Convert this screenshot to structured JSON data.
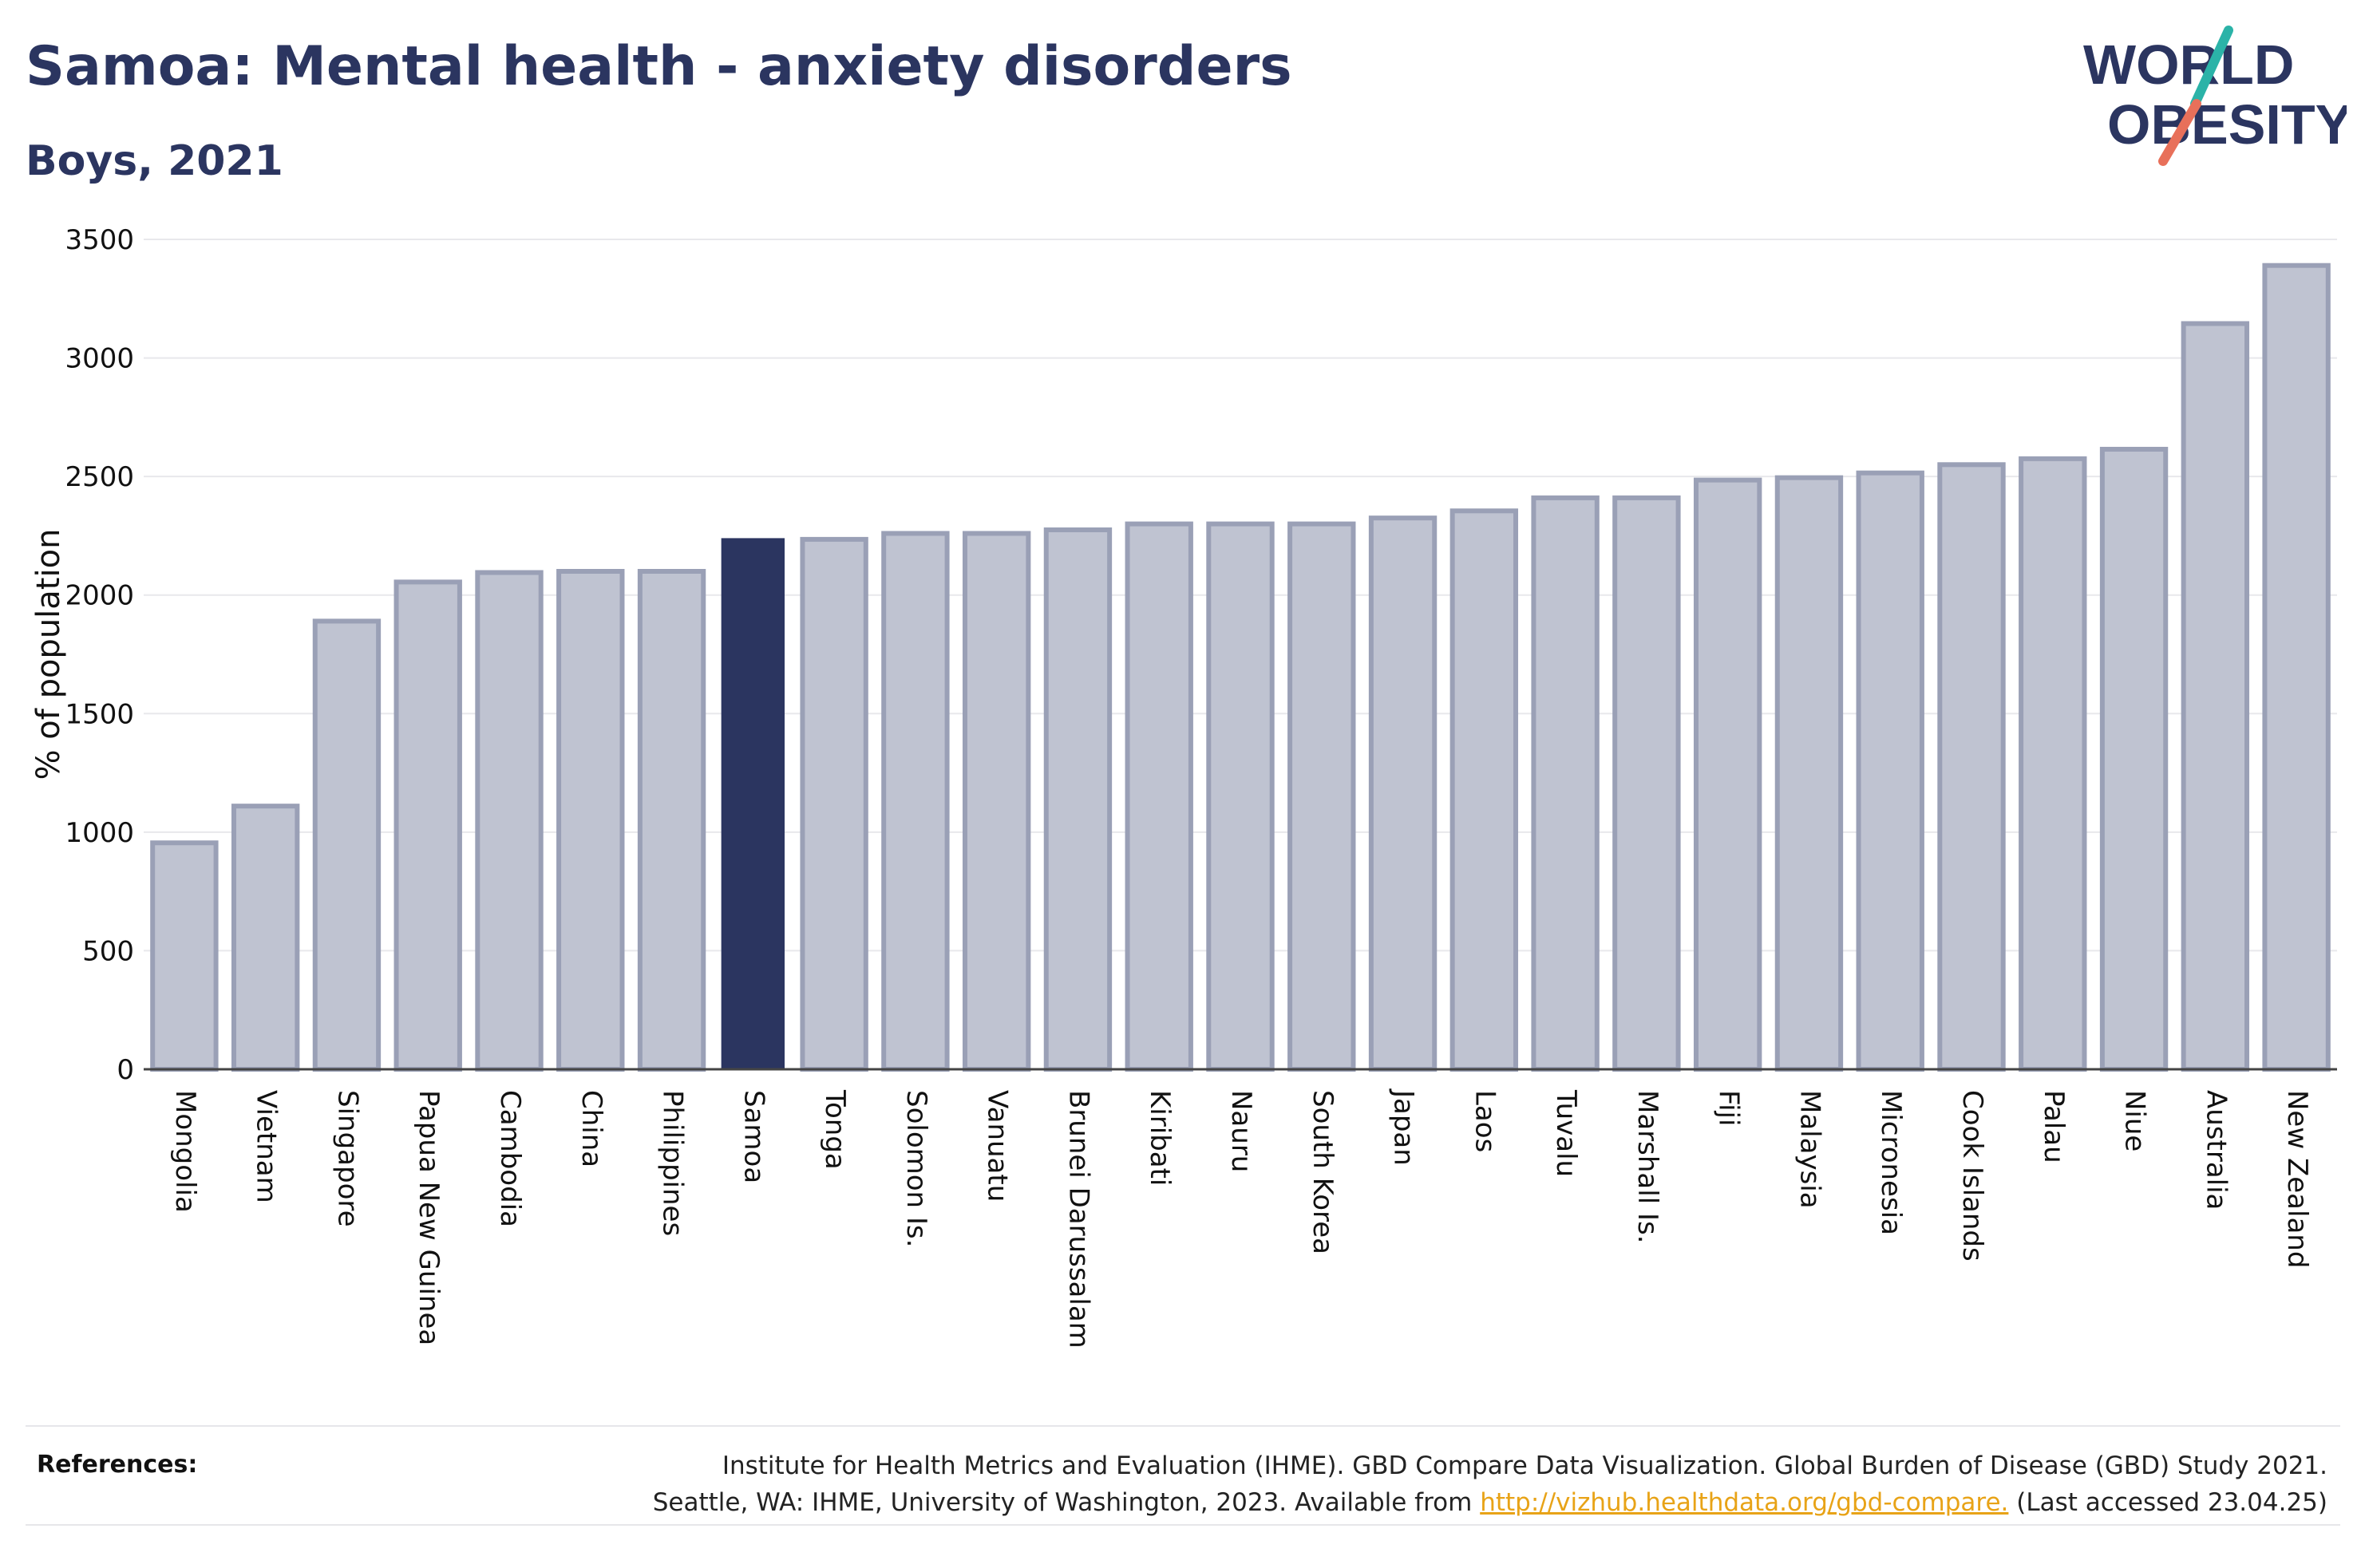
{
  "title": "Samoa: Mental health - anxiety disorders",
  "subtitle": "Boys, 2021",
  "logo": {
    "line1": "WORLD",
    "line2": "OBESITY",
    "icon": "world-obesity-logo"
  },
  "colors": {
    "bar": "#bfc3d1",
    "bar_stroke": "#9aa0b6",
    "highlight": "#2b3560",
    "grid": "#e8e8ec",
    "axis": "#444444"
  },
  "chart_data": {
    "type": "bar",
    "title": "Samoa: Mental health - anxiety disorders",
    "subtitle": "Boys, 2021",
    "ylabel": "% of population",
    "xlabel": "",
    "ylim": [
      0,
      3500
    ],
    "yticks": [
      0,
      500,
      1000,
      1500,
      2000,
      2500,
      3000,
      3500
    ],
    "grid": true,
    "highlight": "Samoa",
    "categories": [
      "Mongolia",
      "Vietnam",
      "Singapore",
      "Papua New Guinea",
      "Cambodia",
      "China",
      "Philippines",
      "Samoa",
      "Tonga",
      "Solomon Is.",
      "Vanuatu",
      "Brunei Darussalam",
      "Kiribati",
      "Nauru",
      "South Korea",
      "Japan",
      "Laos",
      "Tuvalu",
      "Marshall Is.",
      "Fiji",
      "Malaysia",
      "Micronesia",
      "Cook Islands",
      "Palau",
      "Niue",
      "Australia",
      "New Zealand"
    ],
    "values": [
      955,
      1110,
      1890,
      2055,
      2095,
      2100,
      2100,
      2240,
      2235,
      2260,
      2260,
      2275,
      2300,
      2300,
      2300,
      2325,
      2355,
      2410,
      2410,
      2485,
      2495,
      2515,
      2550,
      2575,
      2615,
      3145,
      3390
    ]
  },
  "references": {
    "label": "References:",
    "line1": "Institute for Health Metrics and Evaluation (IHME). GBD Compare Data Visualization. Global Burden of Disease (GBD) Study 2021.",
    "line2_prefix": "Seattle, WA: IHME, University of Washington, 2023. Available from ",
    "link": "http://vizhub.healthdata.org/gbd-compare.",
    "line2_suffix": " (Last accessed 23.04.25)"
  }
}
